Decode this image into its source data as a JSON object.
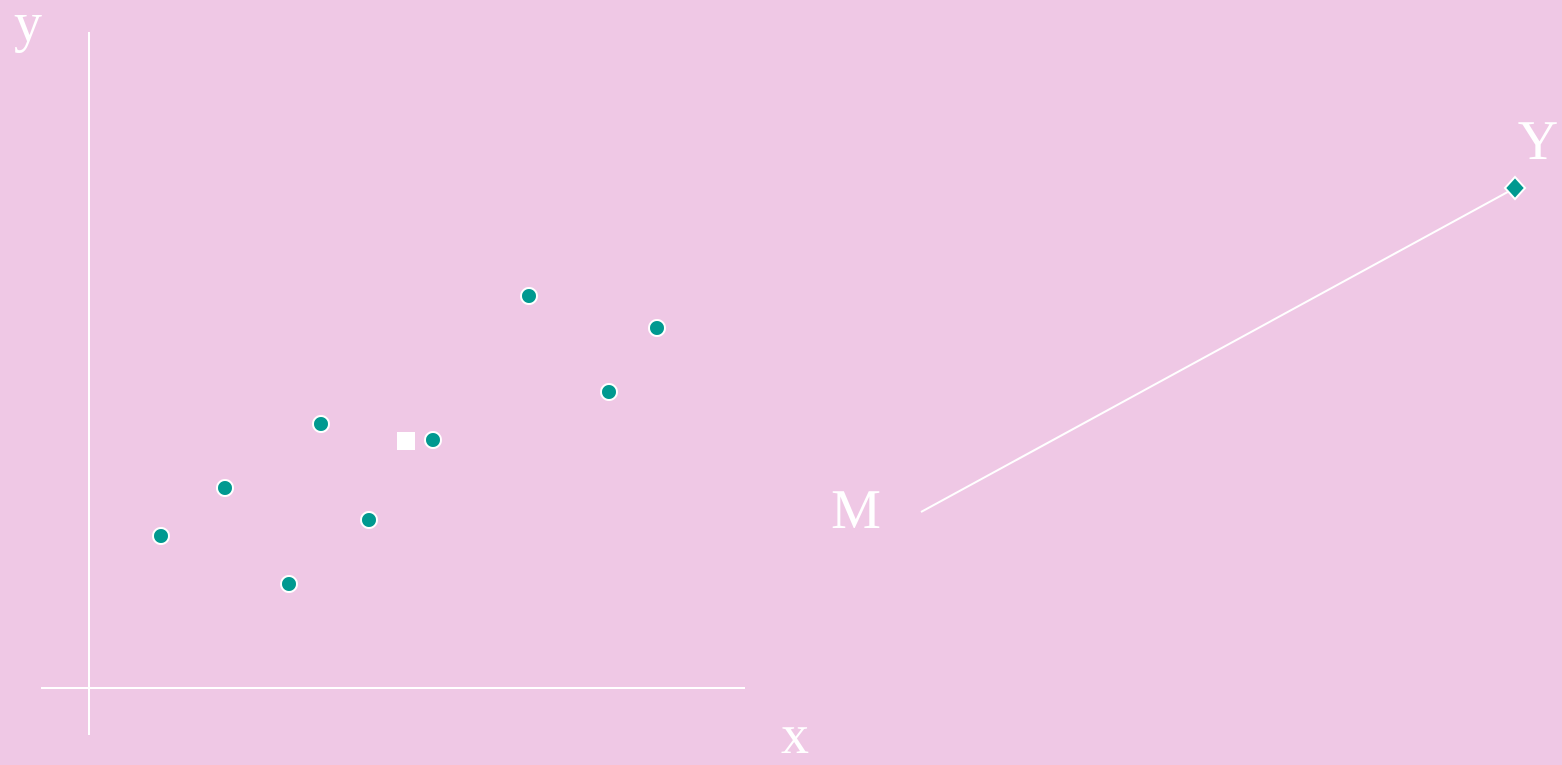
{
  "axes": {
    "y_label": "y",
    "x_label": "x"
  },
  "mapping": {
    "source_label": "M",
    "target_label": "Y"
  }
}
